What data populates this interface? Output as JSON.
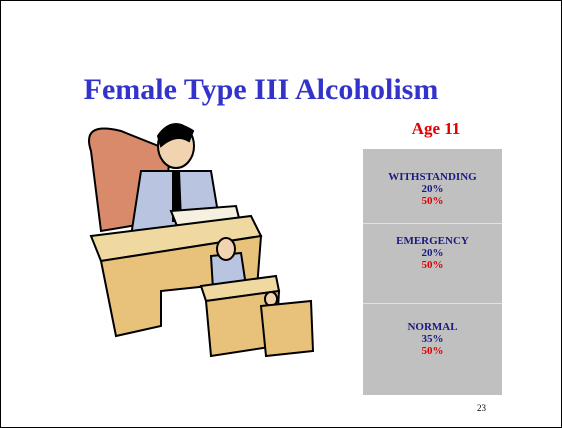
{
  "slide": {
    "title": "Female Type III Alcoholism",
    "subtitle": "Age 11",
    "boxes": [
      {
        "label": "WITHSTANDING",
        "value": "20%",
        "value2": "50%"
      },
      {
        "label": "EMERGENCY",
        "value": "20%",
        "value2": "50%"
      },
      {
        "label": "NORMAL",
        "value": "35%",
        "value2": "50%"
      }
    ],
    "page_number": "23"
  }
}
